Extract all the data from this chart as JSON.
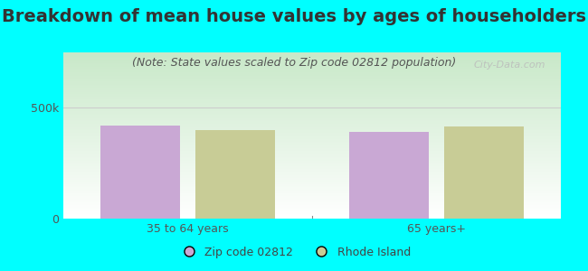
{
  "title": "Breakdown of mean house values by ages of householders",
  "subtitle": "(Note: State values scaled to Zip code 02812 population)",
  "categories": [
    "35 to 64 years",
    "65 years+"
  ],
  "zip_values": [
    420000,
    390000
  ],
  "ri_values": [
    400000,
    415000
  ],
  "zip_color": "#c9a8d4",
  "ri_color": "#c8cc96",
  "ylim": [
    0,
    750000
  ],
  "ytick_vals": [
    0,
    500000
  ],
  "ytick_labels": [
    "0",
    "500k"
  ],
  "bg_color": "#00ffff",
  "legend_zip_label": "Zip code 02812",
  "legend_ri_label": "Rhode Island",
  "bar_width": 0.32,
  "title_fontsize": 14,
  "subtitle_fontsize": 9,
  "tick_fontsize": 9,
  "watermark": "City-Data.com",
  "gradient_top": "#c8e8c8",
  "gradient_bottom": "#ffffff"
}
